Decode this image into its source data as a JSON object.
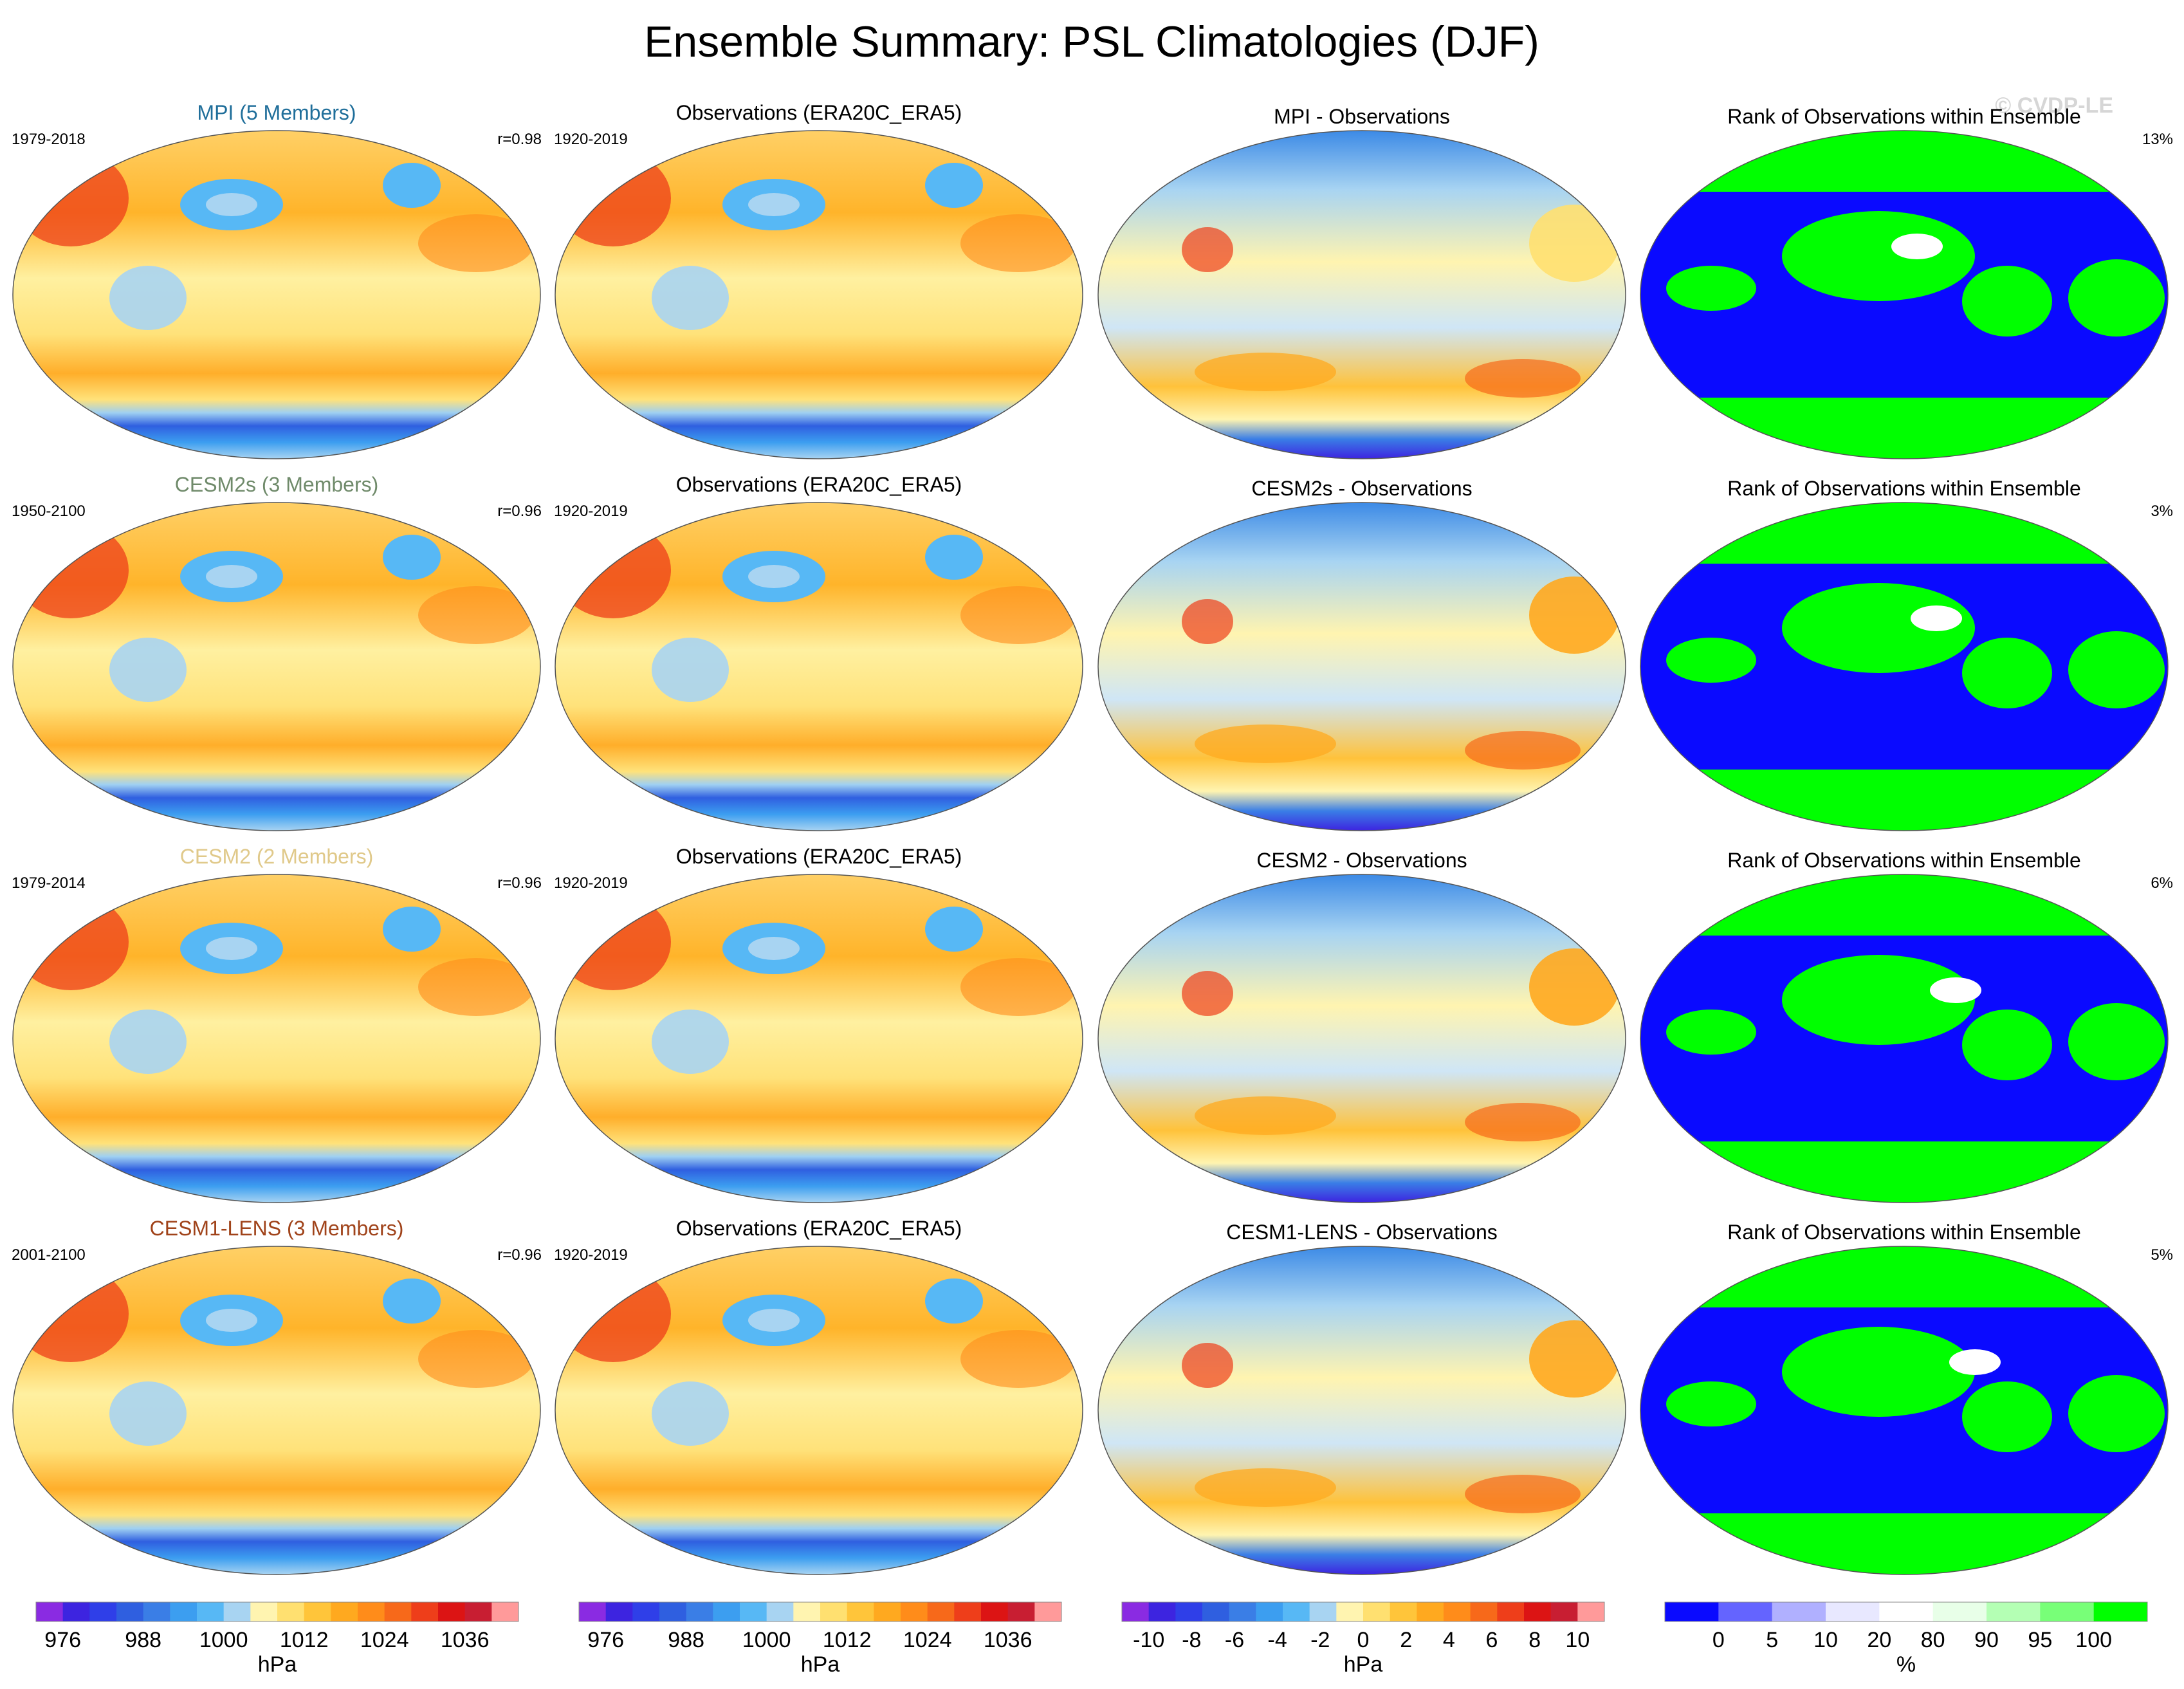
{
  "title": "Ensemble Summary: PSL Climatologies (DJF)",
  "watermark": "© CVDP-LE",
  "chart_data": {
    "type": "heatmap",
    "description_fields": [
      "row_label",
      "years",
      "correlation",
      "obs_title",
      "obs_years",
      "diff_title",
      "rank_title",
      "rank_percent"
    ],
    "rows": [
      {
        "model": "MPI",
        "row_label": "MPI (5 Members)",
        "label_color": "#1f6e9a",
        "years": "1979-2018",
        "correlation": "r=0.98",
        "obs_title": "Observations (ERA20C_ERA5)",
        "obs_years": "1920-2019",
        "diff_title": "MPI - Observations",
        "rank_title": "Rank of Observations within Ensemble",
        "rank_percent": "13%"
      },
      {
        "model": "CESM2s",
        "row_label": "CESM2s (3 Members)",
        "label_color": "#6f8a6a",
        "years": "1950-2100",
        "correlation": "r=0.96",
        "obs_title": "Observations (ERA20C_ERA5)",
        "obs_years": "1920-2019",
        "diff_title": "CESM2s - Observations",
        "rank_title": "Rank of Observations within Ensemble",
        "rank_percent": "3%"
      },
      {
        "model": "CESM2",
        "row_label": "CESM2 (2 Members)",
        "label_color": "#e0c98a",
        "years": "1979-2014",
        "correlation": "r=0.96",
        "obs_title": "Observations (ERA20C_ERA5)",
        "obs_years": "1920-2019",
        "diff_title": "CESM2 - Observations",
        "rank_title": "Rank of Observations within Ensemble",
        "rank_percent": "6%"
      },
      {
        "model": "CESM1-LENS",
        "row_label": "CESM1-LENS (3 Members)",
        "label_color": "#a0431a",
        "years": "2001-2100",
        "correlation": "r=0.96",
        "obs_title": "Observations (ERA20C_ERA5)",
        "obs_years": "1920-2019",
        "diff_title": "CESM1-LENS - Observations",
        "rank_title": "Rank of Observations within Ensemble",
        "rank_percent": "5%"
      }
    ],
    "colorbars": [
      {
        "id": "model",
        "unit": "hPa",
        "ticks": [
          "976",
          "988",
          "1000",
          "1012",
          "1024",
          "1036"
        ],
        "colors": [
          "#8a2be2",
          "#3d24e0",
          "#2f3fe8",
          "#2f5fe0",
          "#3a7ee6",
          "#3c9ef0",
          "#57b8f5",
          "#a8d4f2",
          "#fff4b0",
          "#ffe070",
          "#ffc53a",
          "#ffa91f",
          "#ff8c1a",
          "#f7691a",
          "#ee3e1a",
          "#dc1414",
          "#c81e32",
          "#ff9a9a"
        ]
      },
      {
        "id": "obs",
        "unit": "hPa",
        "ticks": [
          "976",
          "988",
          "1000",
          "1012",
          "1024",
          "1036"
        ],
        "colors": [
          "#8a2be2",
          "#3d24e0",
          "#2f3fe8",
          "#2f5fe0",
          "#3a7ee6",
          "#3c9ef0",
          "#57b8f5",
          "#a8d4f2",
          "#fff4b0",
          "#ffe070",
          "#ffc53a",
          "#ffa91f",
          "#ff8c1a",
          "#f7691a",
          "#ee3e1a",
          "#dc1414",
          "#c81e32",
          "#ff9a9a"
        ]
      },
      {
        "id": "diff",
        "unit": "hPa",
        "ticks": [
          "-10",
          "-8",
          "-6",
          "-4",
          "-2",
          "0",
          "2",
          "4",
          "6",
          "8",
          "10"
        ],
        "colors": [
          "#8a2be2",
          "#3d24e0",
          "#2f3fe8",
          "#2f5fe0",
          "#3a7ee6",
          "#3c9ef0",
          "#57b8f5",
          "#a8d4f2",
          "#fff4b0",
          "#ffe070",
          "#ffc53a",
          "#ffa91f",
          "#ff8c1a",
          "#f7691a",
          "#ee3e1a",
          "#dc1414",
          "#c81e32",
          "#ff9a9a"
        ]
      },
      {
        "id": "rank",
        "unit": "%",
        "ticks": [
          "0",
          "5",
          "10",
          "20",
          "80",
          "90",
          "95",
          "100"
        ],
        "colors": [
          "#0a0aff",
          "#6464ff",
          "#b0b0ff",
          "#e8e8ff",
          "#ffffff",
          "#e8ffe8",
          "#b4ffb4",
          "#78ff78",
          "#00ff00"
        ]
      }
    ]
  }
}
